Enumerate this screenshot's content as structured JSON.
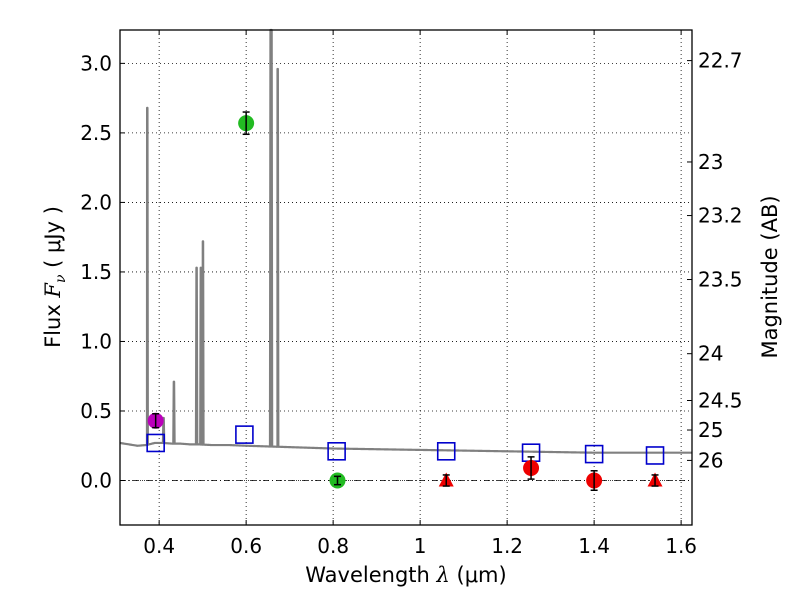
{
  "chart_data": {
    "type": "scatter",
    "xlabel": {
      "prefix": "Wavelength  ",
      "symbol": "λ",
      "unit": " (μm)"
    },
    "ylabel": {
      "prefix": "Flux  ",
      "symbol": "F",
      "subscript": "ν",
      "unit": "  ( μJy )"
    },
    "y2label": "Magnitude (AB)",
    "xlim": [
      0.31,
      1.625
    ],
    "ylim": [
      -0.32,
      3.24
    ],
    "xticks": [
      0.4,
      0.6,
      0.8,
      1.0,
      1.2,
      1.4,
      1.6
    ],
    "xtick_labels": [
      "0.4",
      "0.6",
      "0.8",
      "1",
      "1.2",
      "1.4",
      "1.6"
    ],
    "yticks": [
      0.0,
      0.5,
      1.0,
      1.5,
      2.0,
      2.5,
      3.0
    ],
    "ytick_labels": [
      "0.0",
      "0.5",
      "1.0",
      "1.5",
      "2.0",
      "2.5",
      "3.0"
    ],
    "magnitude_ticks": [
      "22.7",
      "23",
      "23.2",
      "23.5",
      "24",
      "24.5",
      "25",
      "26"
    ],
    "grid": true,
    "zero_line": true,
    "colors": {
      "spectrum": "#808080",
      "model": "#0000cc",
      "green": "#22bb22",
      "magenta": "#bb00bb",
      "red": "#ee0000",
      "errorbar": "#000000"
    },
    "spectrum": {
      "name": "model spectrum",
      "continuum": [
        [
          0.31,
          0.27
        ],
        [
          0.33,
          0.26
        ],
        [
          0.35,
          0.25
        ],
        [
          0.37,
          0.255
        ],
        [
          0.39,
          0.27
        ],
        [
          0.41,
          0.27
        ],
        [
          0.43,
          0.265
        ],
        [
          0.45,
          0.265
        ],
        [
          0.47,
          0.26
        ],
        [
          0.49,
          0.26
        ],
        [
          0.52,
          0.255
        ],
        [
          0.56,
          0.255
        ],
        [
          0.6,
          0.25
        ],
        [
          0.65,
          0.245
        ],
        [
          0.7,
          0.24
        ],
        [
          0.75,
          0.235
        ],
        [
          0.8,
          0.23
        ],
        [
          0.9,
          0.225
        ],
        [
          1.0,
          0.22
        ],
        [
          1.1,
          0.215
        ],
        [
          1.2,
          0.21
        ],
        [
          1.3,
          0.205
        ],
        [
          1.4,
          0.2
        ],
        [
          1.5,
          0.2
        ],
        [
          1.625,
          0.2
        ]
      ],
      "emission_lines": [
        {
          "x": 0.3727,
          "peak": 2.68
        },
        {
          "x": 0.4102,
          "peak": 0.45
        },
        {
          "x": 0.434,
          "peak": 0.71
        },
        {
          "x": 0.4861,
          "peak": 1.53
        },
        {
          "x": 0.4959,
          "peak": 1.53
        },
        {
          "x": 0.5007,
          "peak": 1.72
        },
        {
          "x": 0.6563,
          "peak": 3.24
        },
        {
          "x": 0.6583,
          "peak": 3.24
        },
        {
          "x": 0.6725,
          "peak": 2.96
        }
      ]
    },
    "model_photometry": {
      "name": "model photometry",
      "points": [
        [
          0.392,
          0.27
        ],
        [
          0.596,
          0.33
        ],
        [
          0.808,
          0.21
        ],
        [
          1.06,
          0.21
        ],
        [
          1.255,
          0.2
        ],
        [
          1.4,
          0.19
        ],
        [
          1.54,
          0.18
        ]
      ]
    },
    "observed": [
      {
        "name": "magenta point",
        "color": "magenta",
        "marker": "circle",
        "x": 0.392,
        "y": 0.43,
        "err": 0.05
      },
      {
        "name": "green point 1",
        "color": "green",
        "marker": "circle",
        "x": 0.6,
        "y": 2.57,
        "err": 0.08
      },
      {
        "name": "green point 2",
        "color": "green",
        "marker": "circle",
        "x": 0.81,
        "y": 0.0,
        "err": 0.03
      },
      {
        "name": "red point 1",
        "color": "red",
        "marker": "triangle",
        "x": 1.06,
        "y": 0.0,
        "err": 0.04
      },
      {
        "name": "red point 2",
        "color": "red",
        "marker": "circle",
        "x": 1.255,
        "y": 0.09,
        "err": 0.08
      },
      {
        "name": "red point 3",
        "color": "red",
        "marker": "circle",
        "x": 1.4,
        "y": 0.0,
        "err": 0.07
      },
      {
        "name": "red point 4",
        "color": "red",
        "marker": "triangle",
        "x": 1.54,
        "y": 0.0,
        "err": 0.04
      }
    ]
  }
}
